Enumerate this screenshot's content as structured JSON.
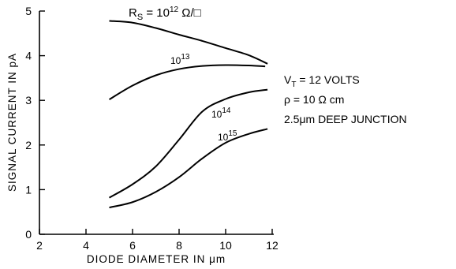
{
  "chart_data": {
    "type": "line",
    "title": "",
    "xlabel": "DIODE DIAMETER IN μm",
    "ylabel": "SIGNAL CURRENT IN pA",
    "xlim": [
      2,
      12
    ],
    "ylim": [
      0,
      5
    ],
    "x_ticks": [
      "2",
      "4",
      "6",
      "8",
      "10",
      "12"
    ],
    "y_ticks": [
      "0",
      "1",
      "2",
      "3",
      "4",
      "5"
    ],
    "grid": false,
    "series": [
      {
        "label_text": "R_S = 10^12 Ω/□",
        "x": [
          5,
          6,
          7,
          8,
          9,
          10,
          11,
          11.8
        ],
        "y": [
          4.78,
          4.74,
          4.62,
          4.47,
          4.33,
          4.17,
          4.01,
          3.82
        ]
      },
      {
        "label_text": "10^13",
        "x": [
          5,
          6,
          7,
          8,
          9,
          10,
          11,
          11.7
        ],
        "y": [
          3.02,
          3.33,
          3.56,
          3.7,
          3.77,
          3.79,
          3.78,
          3.76
        ]
      },
      {
        "label_text": "10^14",
        "x": [
          5,
          6,
          7,
          8,
          9,
          10,
          11,
          11.8
        ],
        "y": [
          0.82,
          1.12,
          1.52,
          2.12,
          2.75,
          3.03,
          3.18,
          3.24
        ]
      },
      {
        "label_text": "10^15",
        "x": [
          5,
          6,
          7,
          8,
          9,
          10,
          11,
          11.8
        ],
        "y": [
          0.6,
          0.72,
          0.95,
          1.28,
          1.7,
          2.05,
          2.25,
          2.36
        ]
      }
    ],
    "annotations": [
      "V_T = 12 VOLTS",
      "ρ = 10 Ω cm",
      "2.5μm DEEP JUNCTION"
    ]
  },
  "labels": {
    "rs_prefix": "R",
    "rs_sub": "S",
    "rs_mid": " = 10",
    "rs_exp": "12",
    "rs_unit": " Ω/□",
    "c13_base": "10",
    "c13_exp": "13",
    "c14_base": "10",
    "c14_exp": "14",
    "c15_base": "10",
    "c15_exp": "15",
    "vt_prefix": "V",
    "vt_sub": "T",
    "vt_rest": " = 12 VOLTS",
    "rho_line": "ρ = 10 Ω cm",
    "junction_line": "2.5μm DEEP JUNCTION"
  }
}
